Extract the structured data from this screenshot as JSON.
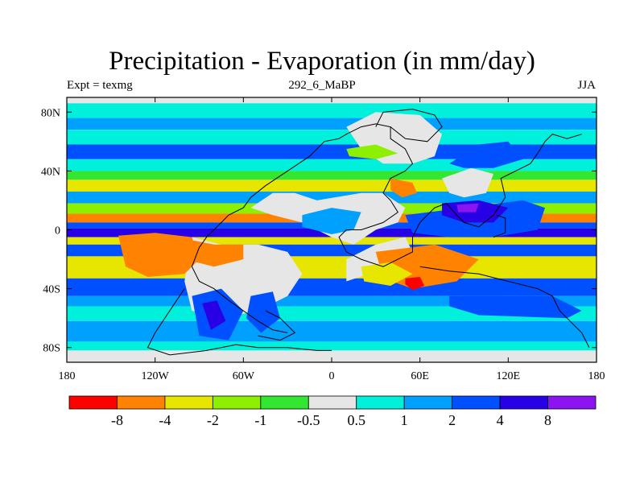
{
  "chart_data": {
    "type": "heatmap",
    "title": "Precipitation - Evaporation (in mm/day)",
    "left_subtitle": "Expt = texmg",
    "center_subtitle": "292_6_MaBP",
    "right_subtitle": "JJA",
    "xlim": [
      -180,
      180
    ],
    "ylim": [
      -90,
      90
    ],
    "x_ticks": [
      {
        "value": -180,
        "label": "180"
      },
      {
        "value": -120,
        "label": "120W"
      },
      {
        "value": -60,
        "label": "60W"
      },
      {
        "value": 0,
        "label": "0"
      },
      {
        "value": 60,
        "label": "60E"
      },
      {
        "value": 120,
        "label": "120E"
      },
      {
        "value": 180,
        "label": "180"
      }
    ],
    "y_ticks": [
      {
        "value": 80,
        "label": "80N"
      },
      {
        "value": 40,
        "label": "40N"
      },
      {
        "value": 0,
        "label": "0"
      },
      {
        "value": -40,
        "label": "40S"
      },
      {
        "value": -80,
        "label": "80S"
      }
    ],
    "colorbar": {
      "levels": [
        "-8",
        "-4",
        "-2",
        "-1",
        "-0.5",
        "0.5",
        "1",
        "2",
        "4",
        "8"
      ],
      "colors": [
        "#ff0000",
        "#ff8200",
        "#e6e600",
        "#8cf000",
        "#32e632",
        "#e6e6e6",
        "#00f0dc",
        "#00a0ff",
        "#0050ff",
        "#2800e6",
        "#8c14f0"
      ]
    },
    "bands": [
      {
        "lat": [
          86,
          90
        ],
        "color": "#e6e6e6"
      },
      {
        "lat": [
          76,
          86
        ],
        "color": "#00f0dc"
      },
      {
        "lat": [
          68,
          76
        ],
        "color": "#00a0ff"
      },
      {
        "lat": [
          58,
          68
        ],
        "color": "#00f0dc"
      },
      {
        "lat": [
          48,
          58
        ],
        "color": "#0050ff"
      },
      {
        "lat": [
          40,
          48
        ],
        "color": "#00f0dc"
      },
      {
        "lat": [
          34,
          40
        ],
        "color": "#32e632"
      },
      {
        "lat": [
          26,
          34
        ],
        "color": "#e6e600"
      },
      {
        "lat": [
          18,
          26
        ],
        "color": "#00a0ff"
      },
      {
        "lat": [
          11,
          18
        ],
        "color": "#8cf000"
      },
      {
        "lat": [
          5,
          11
        ],
        "color": "#ff8200"
      },
      {
        "lat": [
          1,
          5
        ],
        "color": "#0050ff"
      },
      {
        "lat": [
          -5,
          1
        ],
        "color": "#2800e6"
      },
      {
        "lat": [
          -10,
          -5
        ],
        "color": "#e6e600"
      },
      {
        "lat": [
          -18,
          -10
        ],
        "color": "#0050ff"
      },
      {
        "lat": [
          -33,
          -18
        ],
        "color": "#e6e600"
      },
      {
        "lat": [
          -45,
          -33
        ],
        "color": "#0050ff"
      },
      {
        "lat": [
          -52,
          -45
        ],
        "color": "#00a0ff"
      },
      {
        "lat": [
          -62,
          -52
        ],
        "color": "#00f0dc"
      },
      {
        "lat": [
          -76,
          -62
        ],
        "color": "#00a0ff"
      },
      {
        "lat": [
          -82,
          -76
        ],
        "color": "#00f0dc"
      },
      {
        "lat": [
          -90,
          -82
        ],
        "color": "#e6e6e6"
      }
    ],
    "patches": [
      {
        "color": "#e6e6e6",
        "points": [
          [
            -10,
            20
          ],
          [
            20,
            25
          ],
          [
            35,
            25
          ],
          [
            50,
            15
          ],
          [
            45,
            5
          ],
          [
            30,
            0
          ],
          [
            15,
            -10
          ],
          [
            0,
            -5
          ],
          [
            -20,
            5
          ],
          [
            -40,
            10
          ],
          [
            -55,
            15
          ],
          [
            -40,
            25
          ],
          [
            -25,
            25
          ]
        ]
      },
      {
        "color": "#e6e6e6",
        "points": [
          [
            10,
            70
          ],
          [
            30,
            80
          ],
          [
            60,
            78
          ],
          [
            75,
            65
          ],
          [
            70,
            50
          ],
          [
            55,
            45
          ],
          [
            35,
            45
          ],
          [
            20,
            55
          ]
        ]
      },
      {
        "color": "#e6e6e6",
        "points": [
          [
            75,
            35
          ],
          [
            95,
            42
          ],
          [
            110,
            38
          ],
          [
            105,
            25
          ],
          [
            90,
            22
          ],
          [
            80,
            25
          ]
        ]
      },
      {
        "color": "#e6e6e6",
        "points": [
          [
            -95,
            -5
          ],
          [
            -75,
            -10
          ],
          [
            -50,
            -10
          ],
          [
            -30,
            -15
          ],
          [
            -20,
            -30
          ],
          [
            -30,
            -45
          ],
          [
            -50,
            -55
          ],
          [
            -75,
            -60
          ],
          [
            -95,
            -55
          ],
          [
            -100,
            -35
          ]
        ]
      },
      {
        "color": "#e6e6e6",
        "points": [
          [
            10,
            -35
          ],
          [
            40,
            -25
          ],
          [
            55,
            -15
          ],
          [
            50,
            -5
          ],
          [
            30,
            -10
          ],
          [
            10,
            -20
          ]
        ]
      },
      {
        "color": "#ff8200",
        "points": [
          [
            -145,
            -4
          ],
          [
            -120,
            -2
          ],
          [
            -95,
            -5
          ],
          [
            -90,
            -20
          ],
          [
            -100,
            -30
          ],
          [
            -125,
            -32
          ],
          [
            -140,
            -25
          ]
        ]
      },
      {
        "color": "#ff8200",
        "points": [
          [
            30,
            -15
          ],
          [
            70,
            -10
          ],
          [
            100,
            -20
          ],
          [
            85,
            -35
          ],
          [
            55,
            -40
          ],
          [
            35,
            -33
          ]
        ]
      },
      {
        "color": "#ff0000",
        "points": [
          [
            50,
            -33
          ],
          [
            60,
            -32
          ],
          [
            63,
            -38
          ],
          [
            55,
            -41
          ],
          [
            50,
            -37
          ]
        ]
      },
      {
        "color": "#e6e600",
        "points": [
          [
            20,
            -25
          ],
          [
            40,
            -22
          ],
          [
            55,
            -30
          ],
          [
            40,
            -38
          ],
          [
            22,
            -35
          ]
        ]
      },
      {
        "color": "#ff8200",
        "points": [
          [
            40,
            35
          ],
          [
            55,
            32
          ],
          [
            58,
            25
          ],
          [
            48,
            22
          ],
          [
            40,
            27
          ]
        ]
      },
      {
        "color": "#ff8200",
        "points": [
          [
            -100,
            -6
          ],
          [
            -80,
            -10
          ],
          [
            -60,
            -10
          ],
          [
            -60,
            -20
          ],
          [
            -80,
            -25
          ],
          [
            -100,
            -20
          ]
        ]
      },
      {
        "color": "#0050ff",
        "points": [
          [
            50,
            10
          ],
          [
            90,
            15
          ],
          [
            130,
            20
          ],
          [
            145,
            15
          ],
          [
            140,
            0
          ],
          [
            110,
            -5
          ],
          [
            80,
            -5
          ],
          [
            55,
            -2
          ]
        ]
      },
      {
        "color": "#2800e6",
        "points": [
          [
            75,
            18
          ],
          [
            100,
            20
          ],
          [
            120,
            15
          ],
          [
            110,
            5
          ],
          [
            90,
            5
          ],
          [
            75,
            10
          ]
        ]
      },
      {
        "color": "#8c14f0",
        "points": [
          [
            85,
            17
          ],
          [
            100,
            18
          ],
          [
            98,
            12
          ],
          [
            86,
            12
          ]
        ]
      },
      {
        "color": "#00a0ff",
        "points": [
          [
            -20,
            10
          ],
          [
            0,
            15
          ],
          [
            20,
            12
          ],
          [
            15,
            0
          ],
          [
            0,
            -3
          ],
          [
            -20,
            2
          ]
        ]
      },
      {
        "color": "#0050ff",
        "points": [
          [
            -95,
            -45
          ],
          [
            -75,
            -40
          ],
          [
            -60,
            -55
          ],
          [
            -70,
            -75
          ],
          [
            -90,
            -72
          ]
        ]
      },
      {
        "color": "#2800e6",
        "points": [
          [
            -88,
            -50
          ],
          [
            -78,
            -48
          ],
          [
            -72,
            -62
          ],
          [
            -82,
            -68
          ]
        ]
      },
      {
        "color": "#0050ff",
        "points": [
          [
            -55,
            -45
          ],
          [
            -40,
            -42
          ],
          [
            -35,
            -60
          ],
          [
            -48,
            -70
          ],
          [
            -58,
            -60
          ]
        ]
      },
      {
        "color": "#0050ff",
        "points": [
          [
            80,
            -45
          ],
          [
            150,
            -45
          ],
          [
            170,
            -55
          ],
          [
            160,
            -60
          ],
          [
            100,
            -58
          ],
          [
            80,
            -52
          ]
        ]
      },
      {
        "color": "#0050ff",
        "points": [
          [
            80,
            45
          ],
          [
            100,
            58
          ],
          [
            120,
            60
          ],
          [
            130,
            48
          ],
          [
            110,
            42
          ],
          [
            90,
            42
          ]
        ]
      },
      {
        "color": "#8cf000",
        "points": [
          [
            10,
            55
          ],
          [
            30,
            58
          ],
          [
            45,
            52
          ],
          [
            30,
            48
          ],
          [
            12,
            50
          ]
        ]
      }
    ],
    "coastlines": [
      {
        "points": [
          [
            -15,
            50
          ],
          [
            -5,
            60
          ],
          [
            5,
            62
          ],
          [
            10,
            65
          ],
          [
            20,
            70
          ],
          [
            30,
            72
          ],
          [
            40,
            70
          ],
          [
            40,
            62
          ],
          [
            50,
            55
          ],
          [
            55,
            45
          ],
          [
            50,
            40
          ],
          [
            40,
            35
          ],
          [
            35,
            25
          ],
          [
            40,
            20
          ],
          [
            45,
            12
          ],
          [
            35,
            5
          ],
          [
            20,
            0
          ],
          [
            10,
            0
          ],
          [
            5,
            -5
          ],
          [
            10,
            -15
          ],
          [
            20,
            -20
          ],
          [
            35,
            -25
          ],
          [
            45,
            -20
          ],
          [
            55,
            -15
          ],
          [
            55,
            -5
          ],
          [
            60,
            5
          ],
          [
            70,
            15
          ],
          [
            78,
            18
          ],
          [
            85,
            10
          ],
          [
            90,
            5
          ],
          [
            100,
            2
          ],
          [
            110,
            10
          ],
          [
            118,
            22
          ],
          [
            115,
            35
          ],
          [
            125,
            40
          ],
          [
            135,
            45
          ],
          [
            140,
            52
          ],
          [
            145,
            60
          ],
          [
            150,
            65
          ],
          [
            160,
            62
          ],
          [
            170,
            65
          ]
        ]
      },
      {
        "points": [
          [
            -15,
            50
          ],
          [
            -30,
            40
          ],
          [
            -45,
            30
          ],
          [
            -55,
            22
          ],
          [
            -60,
            15
          ],
          [
            -70,
            10
          ],
          [
            -75,
            5
          ],
          [
            -85,
            -5
          ],
          [
            -90,
            -12
          ],
          [
            -95,
            -25
          ],
          [
            -90,
            -35
          ],
          [
            -80,
            -40
          ],
          [
            -70,
            -48
          ],
          [
            -60,
            -55
          ],
          [
            -50,
            -62
          ],
          [
            -40,
            -68
          ],
          [
            -30,
            -70
          ]
        ]
      },
      {
        "points": [
          [
            -100,
            -40
          ],
          [
            -110,
            -55
          ],
          [
            -120,
            -70
          ],
          [
            -125,
            -80
          ],
          [
            -110,
            -85
          ],
          [
            -85,
            -82
          ],
          [
            -65,
            -78
          ],
          [
            -50,
            -80
          ],
          [
            -30,
            -80
          ],
          [
            -10,
            -82
          ],
          [
            0,
            -82
          ]
        ]
      },
      {
        "points": [
          [
            -45,
            -55
          ],
          [
            -35,
            -60
          ],
          [
            -25,
            -70
          ],
          [
            -35,
            -75
          ],
          [
            -50,
            -72
          ]
        ]
      },
      {
        "points": [
          [
            60,
            -25
          ],
          [
            80,
            -28
          ],
          [
            100,
            -30
          ],
          [
            120,
            -35
          ],
          [
            140,
            -40
          ],
          [
            150,
            -45
          ],
          [
            155,
            -55
          ],
          [
            160,
            -60
          ],
          [
            170,
            -70
          ],
          [
            175,
            -80
          ]
        ]
      },
      {
        "points": [
          [
            30,
            70
          ],
          [
            35,
            80
          ],
          [
            55,
            82
          ],
          [
            70,
            78
          ],
          [
            75,
            70
          ],
          [
            65,
            60
          ],
          [
            50,
            62
          ],
          [
            40,
            70
          ]
        ]
      },
      {
        "points": [
          [
            110,
            -5
          ],
          [
            118,
            -2
          ],
          [
            118,
            8
          ],
          [
            112,
            10
          ]
        ]
      }
    ]
  }
}
